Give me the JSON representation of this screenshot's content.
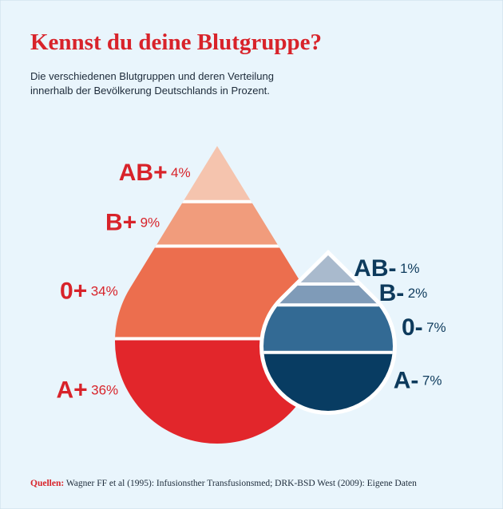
{
  "header": {
    "title": "Kennst du deine Blutgruppe?",
    "subtitle": [
      "Die verschiedenen Blutgruppen und deren Verteilung",
      "innerhalb der Bevölkerung Deutschlands in Prozent."
    ]
  },
  "chart_data": [
    {
      "type": "drop",
      "categories": [
        "AB+",
        "B+",
        "0+",
        "A+"
      ],
      "values": [
        4,
        9,
        34,
        36
      ],
      "value_labels": [
        "4%",
        "9%",
        "34%",
        "36%"
      ],
      "colors": [
        "#f5c4ae",
        "#f19c7c",
        "#ec6e4e",
        "#e2262b"
      ],
      "label_color": "#d8232a",
      "label_side": "left"
    },
    {
      "type": "drop",
      "categories": [
        "AB-",
        "B-",
        "0-",
        "A-"
      ],
      "values": [
        1,
        2,
        7,
        7
      ],
      "value_labels": [
        "1%",
        "2%",
        "7%",
        "7%"
      ],
      "colors": [
        "#a9bacd",
        "#7f9bb8",
        "#336a94",
        "#083c62"
      ],
      "label_color": "#0d3a5c",
      "label_side": "right"
    }
  ],
  "footer": {
    "label": "Quellen:",
    "text": "Wagner FF et al (1995): Infusionsther Transfusionsmed; DRK-BSD West (2009): Eigene Daten"
  }
}
